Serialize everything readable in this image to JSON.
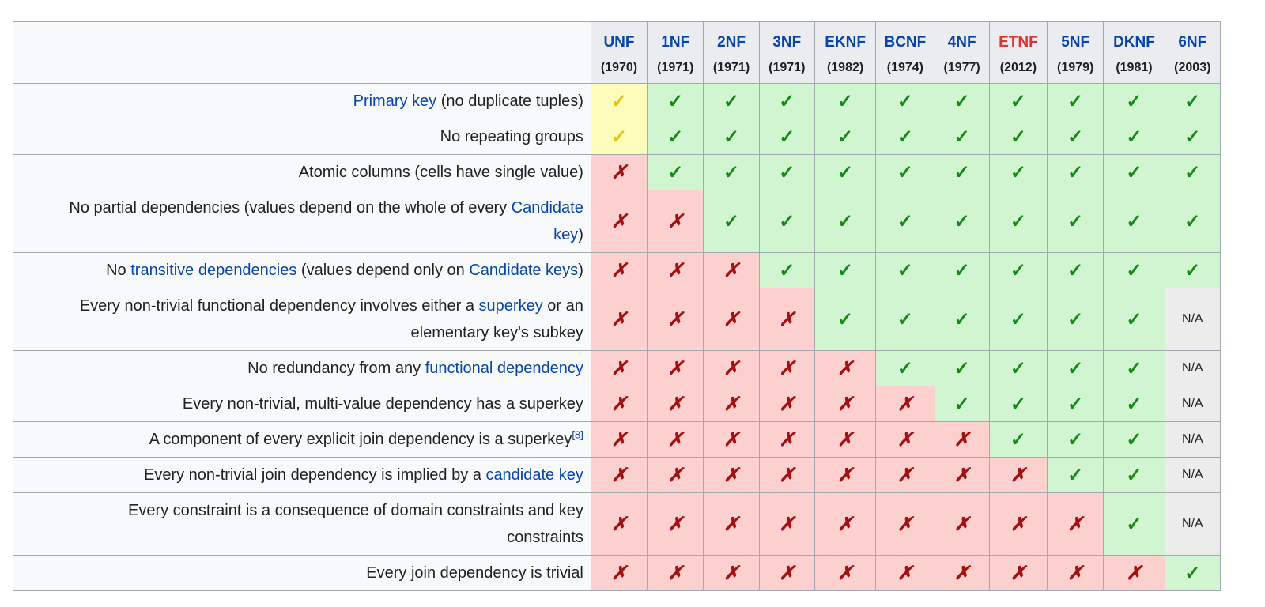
{
  "columns": [
    {
      "name": "UNF",
      "year": "(1970)",
      "style": "link"
    },
    {
      "name": "1NF",
      "year": "(1971)",
      "style": "link"
    },
    {
      "name": "2NF",
      "year": "(1971)",
      "style": "link"
    },
    {
      "name": "3NF",
      "year": "(1971)",
      "style": "link"
    },
    {
      "name": "EKNF",
      "year": "(1982)",
      "style": "link"
    },
    {
      "name": "BCNF",
      "year": "(1974)",
      "style": "link"
    },
    {
      "name": "4NF",
      "year": "(1977)",
      "style": "link"
    },
    {
      "name": "ETNF",
      "year": "(2012)",
      "style": "redlink"
    },
    {
      "name": "5NF",
      "year": "(1979)",
      "style": "link"
    },
    {
      "name": "DKNF",
      "year": "(1981)",
      "style": "link"
    },
    {
      "name": "6NF",
      "year": "(2003)",
      "style": "link"
    }
  ],
  "glyphs": {
    "yes": "✓",
    "partial": "✓",
    "no": "✗",
    "na": "N/A"
  },
  "colors": {
    "yes_bg": "#d0f5d0",
    "partial_bg": "#fefcba",
    "no_bg": "#fdd0d0",
    "na_bg": "#ececec",
    "link": "#0645ad",
    "redlink": "#d33"
  },
  "rows": [
    {
      "label": [
        {
          "t": "Primary key",
          "link": true
        },
        {
          "t": " (no duplicate tuples)"
        }
      ],
      "cells": [
        "partial",
        "yes",
        "yes",
        "yes",
        "yes",
        "yes",
        "yes",
        "yes",
        "yes",
        "yes",
        "yes"
      ]
    },
    {
      "label": [
        {
          "t": "No repeating groups"
        }
      ],
      "cells": [
        "partial",
        "yes",
        "yes",
        "yes",
        "yes",
        "yes",
        "yes",
        "yes",
        "yes",
        "yes",
        "yes"
      ]
    },
    {
      "label": [
        {
          "t": "Atomic columns (cells have single value)"
        }
      ],
      "cells": [
        "no",
        "yes",
        "yes",
        "yes",
        "yes",
        "yes",
        "yes",
        "yes",
        "yes",
        "yes",
        "yes"
      ]
    },
    {
      "label": [
        {
          "t": "No partial dependencies (values depend on the whole of every "
        },
        {
          "t": "Candidate",
          "link": true
        },
        {
          "br": true
        },
        {
          "t": "key",
          "link": true
        },
        {
          "t": ")"
        }
      ],
      "cells": [
        "no",
        "no",
        "yes",
        "yes",
        "yes",
        "yes",
        "yes",
        "yes",
        "yes",
        "yes",
        "yes"
      ]
    },
    {
      "label": [
        {
          "t": "No "
        },
        {
          "t": "transitive dependencies",
          "link": true
        },
        {
          "t": " (values depend only on "
        },
        {
          "t": "Candidate keys",
          "link": true
        },
        {
          "t": ")"
        }
      ],
      "cells": [
        "no",
        "no",
        "no",
        "yes",
        "yes",
        "yes",
        "yes",
        "yes",
        "yes",
        "yes",
        "yes"
      ]
    },
    {
      "label": [
        {
          "t": "Every non-trivial functional dependency involves either a "
        },
        {
          "t": "superkey",
          "link": true
        },
        {
          "t": " or an"
        },
        {
          "br": true
        },
        {
          "t": "elementary key's subkey"
        }
      ],
      "cells": [
        "no",
        "no",
        "no",
        "no",
        "yes",
        "yes",
        "yes",
        "yes",
        "yes",
        "yes",
        "na"
      ]
    },
    {
      "label": [
        {
          "t": "No redundancy from any "
        },
        {
          "t": "functional dependency",
          "link": true
        }
      ],
      "cells": [
        "no",
        "no",
        "no",
        "no",
        "no",
        "yes",
        "yes",
        "yes",
        "yes",
        "yes",
        "na"
      ]
    },
    {
      "label": [
        {
          "t": "Every non-trivial, multi-value dependency has a superkey"
        }
      ],
      "cells": [
        "no",
        "no",
        "no",
        "no",
        "no",
        "no",
        "yes",
        "yes",
        "yes",
        "yes",
        "na"
      ]
    },
    {
      "label": [
        {
          "t": "A component of every explicit join dependency is a superkey"
        },
        {
          "t": "[8]",
          "link": true,
          "sup": true
        }
      ],
      "cells": [
        "no",
        "no",
        "no",
        "no",
        "no",
        "no",
        "no",
        "yes",
        "yes",
        "yes",
        "na"
      ]
    },
    {
      "label": [
        {
          "t": "Every non-trivial join dependency is implied by a "
        },
        {
          "t": "candidate key",
          "link": true
        }
      ],
      "cells": [
        "no",
        "no",
        "no",
        "no",
        "no",
        "no",
        "no",
        "no",
        "yes",
        "yes",
        "na"
      ]
    },
    {
      "label": [
        {
          "t": "Every constraint is a consequence of domain constraints and key"
        },
        {
          "br": true
        },
        {
          "t": "constraints"
        }
      ],
      "cells": [
        "no",
        "no",
        "no",
        "no",
        "no",
        "no",
        "no",
        "no",
        "no",
        "yes",
        "na"
      ]
    },
    {
      "label": [
        {
          "t": "Every join dependency is trivial"
        }
      ],
      "cells": [
        "no",
        "no",
        "no",
        "no",
        "no",
        "no",
        "no",
        "no",
        "no",
        "no",
        "yes"
      ]
    }
  ]
}
